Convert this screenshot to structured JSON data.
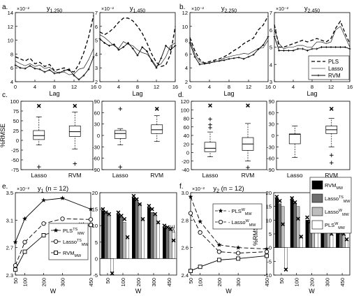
{
  "panel_letters": [
    "a.",
    "b.",
    "c.",
    "d.",
    "e.",
    "f."
  ],
  "legend_ab": [
    {
      "label": "PLS",
      "style": "dashed"
    },
    {
      "label": "Lasso",
      "style": "thin"
    },
    {
      "label": "RVM",
      "style": "star"
    }
  ],
  "legend_e": [
    {
      "label": "PLS",
      "sub": "MW",
      "sup": "TS",
      "marker": "star"
    },
    {
      "label": "Lasso",
      "sub": "MW",
      "sup": "TS",
      "marker": "circle"
    },
    {
      "label": "RVM",
      "sub": "MW",
      "sup": "",
      "marker": "square"
    }
  ],
  "legend_f": [
    {
      "label": "- PLS",
      "sub": "MW",
      "sup": "W",
      "marker": "star"
    },
    {
      "label": "- Lasso",
      "sub": "MW",
      "sup": "W",
      "marker": "circle"
    }
  ],
  "legend_bar": [
    {
      "label": "RVM",
      "sub": "MW",
      "sup": "",
      "color": "#000000"
    },
    {
      "label": "Lasso",
      "sub": "MW",
      "sup": "TS",
      "color": "#6e6e6e"
    },
    {
      "label": "Lasso",
      "sub": "MW",
      "sup": "W",
      "color": "#bdbdbd"
    },
    {
      "label": "PLS",
      "sub": "MW",
      "sup": "W",
      "color": "#ffffff"
    }
  ],
  "colors": {
    "rvm": "#000000",
    "lasso_ts": "#6e6e6e",
    "lasso_w": "#bdbdbd",
    "pls_w": "#ffffff"
  },
  "chart_data": [
    {
      "id": "a1",
      "type": "line",
      "title": "y1,250",
      "multiplier": "×10⁻²",
      "xlabel": "Lag",
      "ylabel": "RMSE",
      "xlim": [
        0,
        16
      ],
      "ylim": [
        4,
        14
      ],
      "xticks": [
        0,
        4,
        8,
        12,
        16
      ],
      "yticks": [
        4,
        6,
        8,
        10,
        12,
        14
      ],
      "x": [
        0,
        1,
        2,
        3,
        4,
        5,
        6,
        7,
        8,
        9,
        10,
        11,
        12,
        13,
        14,
        15,
        16
      ],
      "series": [
        {
          "name": "PLS",
          "values": [
            7.6,
            7.3,
            7.0,
            7.4,
            6.6,
            6.8,
            6.2,
            6.5,
            5.6,
            5.8,
            6.0,
            5.6,
            5.4,
            6.5,
            8.2,
            10.5,
            13.6
          ]
        },
        {
          "name": "Lasso",
          "values": [
            7.0,
            6.6,
            6.3,
            6.6,
            6.2,
            6.4,
            5.9,
            6.1,
            5.5,
            5.3,
            5.4,
            5.0,
            5.1,
            5.8,
            6.0,
            7.2,
            8.8
          ]
        },
        {
          "name": "RVM",
          "values": [
            6.4,
            6.0,
            5.9,
            6.3,
            5.9,
            5.8,
            5.4,
            5.7,
            5.2,
            5.3,
            5.6,
            5.8,
            4.9,
            4.3,
            4.9,
            5.8,
            7.6
          ]
        }
      ]
    },
    {
      "id": "a2",
      "type": "line",
      "title": "y1,450",
      "multiplier": "×10⁻²",
      "xlabel": "Lag",
      "ylabel": "",
      "xlim": [
        0,
        16
      ],
      "ylim": [
        2,
        7
      ],
      "xticks": [
        0,
        4,
        8,
        12,
        16
      ],
      "yticks": [
        2,
        3,
        4,
        5,
        6,
        7
      ],
      "x": [
        0,
        1,
        2,
        3,
        4,
        5,
        6,
        7,
        8,
        9,
        10,
        11,
        12,
        13,
        14,
        15,
        16
      ],
      "series": [
        {
          "name": "PLS",
          "values": [
            5.6,
            5.4,
            5.6,
            5.9,
            6.3,
            6.6,
            6.6,
            6.4,
            6.0,
            5.5,
            4.8,
            4.0,
            3.4,
            3.1,
            3.2,
            4.0,
            6.0
          ]
        },
        {
          "name": "Lasso",
          "values": [
            5.4,
            5.2,
            4.9,
            4.6,
            4.4,
            4.9,
            4.7,
            4.6,
            4.3,
            4.1,
            4.0,
            3.6,
            3.1,
            3.3,
            3.8,
            4.6,
            4.8
          ]
        },
        {
          "name": "RVM",
          "values": [
            5.1,
            4.8,
            4.6,
            4.7,
            4.3,
            4.5,
            4.8,
            4.4,
            3.9,
            4.5,
            4.2,
            3.5,
            3.0,
            3.7,
            4.6,
            4.3,
            4.6
          ]
        }
      ]
    },
    {
      "id": "b1",
      "type": "line",
      "title": "y2,250",
      "multiplier": "×10⁻²",
      "xlabel": "Lag",
      "ylabel": "",
      "xlim": [
        0,
        16
      ],
      "ylim": [
        2,
        12
      ],
      "xticks": [
        0,
        4,
        8,
        12,
        16
      ],
      "yticks": [
        2,
        4,
        6,
        8,
        10,
        12
      ],
      "x": [
        0,
        1,
        2,
        3,
        4,
        5,
        6,
        7,
        8,
        9,
        10,
        11,
        12,
        13,
        14,
        15,
        16
      ],
      "series": [
        {
          "name": "PLS",
          "values": [
            8.4,
            6.5,
            5.2,
            4.7,
            4.9,
            5.1,
            5.3,
            5.6,
            6.0,
            6.5,
            6.9,
            7.5,
            7.9,
            8.3,
            9.5,
            10.2,
            11.5
          ]
        },
        {
          "name": "Lasso",
          "values": [
            8.0,
            6.0,
            4.9,
            4.7,
            4.7,
            4.9,
            5.0,
            5.4,
            5.6,
            5.8,
            5.9,
            6.1,
            6.0,
            6.4,
            6.8,
            6.9,
            8.0
          ]
        },
        {
          "name": "RVM",
          "values": [
            7.6,
            5.6,
            4.5,
            4.6,
            4.7,
            4.9,
            5.0,
            5.1,
            5.3,
            5.4,
            5.5,
            5.3,
            5.6,
            5.9,
            6.7,
            7.3,
            8.5
          ]
        }
      ]
    },
    {
      "id": "b2",
      "type": "line",
      "title": "y2,450",
      "multiplier": "×10⁻²",
      "xlabel": "Lag",
      "ylabel": "",
      "xlim": [
        0,
        16
      ],
      "ylim": [
        3,
        7
      ],
      "xticks": [
        0,
        4,
        8,
        12,
        16
      ],
      "yticks": [
        3,
        4,
        5,
        6,
        7
      ],
      "x": [
        0,
        1,
        2,
        3,
        4,
        5,
        6,
        7,
        8,
        9,
        10,
        11,
        12,
        13,
        14,
        15,
        16
      ],
      "series": [
        {
          "name": "PLS",
          "values": [
            6.3,
            5.0,
            5.0,
            5.1,
            5.2,
            5.3,
            5.4,
            5.3,
            5.4,
            5.5,
            5.4,
            5.3,
            5.5,
            6.1,
            6.5,
            5.8,
            5.2
          ]
        },
        {
          "name": "Lasso",
          "values": [
            6.0,
            5.2,
            4.9,
            5.0,
            5.0,
            5.1,
            5.1,
            5.0,
            5.0,
            5.3,
            5.3,
            5.2,
            5.3,
            6.0,
            6.2,
            5.6,
            5.0
          ]
        },
        {
          "name": "RVM",
          "values": [
            5.6,
            4.8,
            4.8,
            4.8,
            4.8,
            4.9,
            4.9,
            4.8,
            4.9,
            4.9,
            5.0,
            5.0,
            5.0,
            5.0,
            5.0,
            5.0,
            4.9
          ]
        }
      ]
    },
    {
      "id": "c1",
      "type": "box",
      "ylabel": "%RMSE",
      "ylim": [
        -75,
        100
      ],
      "yticks": [
        -75,
        -50,
        -25,
        0,
        25,
        50,
        75,
        100
      ],
      "categories": [
        "Lasso",
        "RVM"
      ],
      "boxes": [
        {
          "whisker_low": -12,
          "q1": 2,
          "median": 12,
          "q3": 25,
          "whisker_high": 60,
          "outliers_plus": [
            -68
          ],
          "outliers_x": [
            88
          ]
        },
        {
          "whisker_low": -22,
          "q1": 10,
          "median": 22,
          "q3": 37,
          "whisker_high": 72,
          "outliers_plus": [
            -60
          ],
          "outliers_x": [
            88
          ]
        }
      ]
    },
    {
      "id": "c2",
      "type": "box",
      "ylabel": "",
      "ylim": [
        -90,
        90
      ],
      "yticks": [
        -90,
        -60,
        -30,
        0,
        30,
        60,
        90
      ],
      "categories": [
        "Lasso",
        "RVM"
      ],
      "boxes": [
        {
          "whisker_low": -25,
          "q1": -8,
          "median": 5,
          "q3": 13,
          "whisker_high": 18,
          "outliers_plus": [
            -83,
            70
          ],
          "outliers_x": []
        },
        {
          "whisker_low": -16,
          "q1": 5,
          "median": 15,
          "q3": 28,
          "whisker_high": 52,
          "outliers_plus": [],
          "outliers_x": [
            70
          ]
        }
      ]
    },
    {
      "id": "d1",
      "type": "box",
      "ylabel": "",
      "ylim": [
        -40,
        120
      ],
      "yticks": [
        -40,
        -20,
        0,
        20,
        40,
        60,
        80,
        100,
        120
      ],
      "categories": [
        "Lasso",
        "RVM"
      ],
      "boxes": [
        {
          "whisker_low": -10,
          "q1": 2,
          "median": 10,
          "q3": 24,
          "whisker_high": 48,
          "outliers_plus": [
            58,
            65,
            78
          ],
          "outliers_x": [
            110
          ]
        },
        {
          "whisker_low": -20,
          "q1": 5,
          "median": 20,
          "q3": 35,
          "whisker_high": 68,
          "outliers_plus": [
            -35
          ],
          "outliers_x": [
            110
          ]
        }
      ]
    },
    {
      "id": "d2",
      "type": "box",
      "ylabel": "",
      "ylim": [
        -90,
        90
      ],
      "yticks": [
        -90,
        -60,
        -30,
        0,
        30,
        60,
        90
      ],
      "categories": [
        "Lasso",
        "RVM"
      ],
      "boxes": [
        {
          "whisker_low": -58,
          "q1": -22,
          "median": 3,
          "q3": 4,
          "whisker_high": 25,
          "outliers_plus": [],
          "outliers_x": []
        },
        {
          "whisker_low": -30,
          "q1": 5,
          "median": 15,
          "q3": 25,
          "whisker_high": 45,
          "outliers_plus": [
            -52,
            -72
          ],
          "outliers_x": [
            70
          ]
        }
      ]
    },
    {
      "id": "e1",
      "type": "line",
      "title": "y1 (n = 12)",
      "multiplier": "×10⁻²",
      "xlabel": "W",
      "ylabel": "RMSE",
      "xlim": [
        50,
        450
      ],
      "ylim": [
        2.3,
        3.5
      ],
      "xticks": [
        50,
        100,
        200,
        300,
        450
      ],
      "yticks": [
        2.3,
        2.7,
        3.1,
        3.5
      ],
      "x": [
        50,
        100,
        200,
        300,
        450
      ],
      "series": [
        {
          "name": "PLS_MW^TS",
          "marker": "star",
          "dash": "none",
          "values": [
            2.78,
            3.12,
            3.39,
            3.42,
            3.26
          ]
        },
        {
          "name": "Lasso_MW^TS",
          "marker": "circle",
          "dash": "6,3",
          "values": [
            2.44,
            2.78,
            3.05,
            3.12,
            3.11
          ]
        },
        {
          "name": "RVM_MW",
          "marker": "square",
          "dash": "none",
          "values": [
            2.38,
            2.64,
            2.88,
            2.98,
            3.03
          ]
        }
      ]
    },
    {
      "id": "e2",
      "type": "bar",
      "xlabel": "W",
      "ylabel": "%RMSE",
      "ylim": [
        -5,
        20
      ],
      "yticks": [
        -5,
        0,
        5,
        10,
        15,
        20
      ],
      "categories": [
        "50",
        "100",
        "200",
        "300",
        "450"
      ],
      "series": [
        {
          "name": "RVM_MW",
          "values": [
            14.5,
            13.5,
            18.5,
            15.5,
            9.5
          ]
        },
        {
          "name": "Lasso_MW^TS",
          "values": [
            13.5,
            12.5,
            17.5,
            14.0,
            9.0
          ]
        },
        {
          "name": "Lasso_MW^W",
          "values": [
            13.0,
            11.0,
            16.5,
            13.0,
            8.5
          ]
        },
        {
          "name": "PLS_MW^W",
          "values": [
            -4.0,
            6.0,
            11.5,
            10.5,
            8.0
          ]
        }
      ],
      "markers_x": [
        [
          15.0,
          14.0,
          13.5,
          -4.5
        ],
        [
          14.0,
          13.0,
          12.0,
          6.5
        ],
        [
          19.0,
          18.0,
          16.5,
          12.0
        ],
        [
          16.0,
          15.0,
          13.5,
          11.0
        ],
        [
          10.0,
          9.5,
          9.0,
          5.5
        ]
      ]
    },
    {
      "id": "f1",
      "type": "line",
      "title": "y2 (n = 12)",
      "multiplier": "×10⁻²",
      "xlabel": "W",
      "ylabel": "RMSE",
      "xlim": [
        50,
        450
      ],
      "ylim": [
        2.4,
        3.0
      ],
      "xticks": [
        50,
        100,
        200,
        300,
        450
      ],
      "yticks": [
        2.4,
        2.6,
        2.8,
        3.0
      ],
      "x": [
        50,
        100,
        200,
        300,
        450
      ],
      "series": [
        {
          "name": "PLS_MW^W",
          "marker": "star",
          "dash": "6,3",
          "values": [
            2.97,
            2.79,
            2.62,
            2.6,
            2.59
          ]
        },
        {
          "name": "Lasso_MW^W",
          "marker": "circle",
          "dash": "6,3",
          "values": [
            2.85,
            2.71,
            2.57,
            2.56,
            2.57
          ]
        },
        {
          "name": "RVM_MW",
          "marker": "square",
          "dash": "none",
          "values": [
            2.43,
            2.46,
            2.51,
            2.52,
            2.54
          ]
        }
      ]
    },
    {
      "id": "f2",
      "type": "bar",
      "xlabel": "W",
      "ylabel": "%RMSE",
      "ylim": [
        -10,
        20
      ],
      "yticks": [
        -10,
        -5,
        0,
        5,
        10,
        15,
        20
      ],
      "categories": [
        "50",
        "100",
        "200",
        "300",
        "450"
      ],
      "series": [
        {
          "name": "RVM_MW",
          "values": [
            18.0,
            17.5,
            10.0,
            7.0,
            6.0
          ]
        },
        {
          "name": "Lasso_MW^TS",
          "values": [
            16.0,
            16.0,
            9.0,
            6.0,
            5.0
          ]
        },
        {
          "name": "Lasso_MW^W",
          "values": [
            15.0,
            15.0,
            8.5,
            5.5,
            4.5
          ]
        },
        {
          "name": "PLS_MW^W",
          "values": [
            -7.5,
            3.5,
            6.0,
            4.5,
            2.5
          ]
        }
      ],
      "markers_x": [
        [
          18.5,
          17.0,
          8.5,
          -8.0
        ],
        [
          18.0,
          16.5,
          10.5,
          4.0
        ],
        [
          11.0,
          9.5,
          9.0,
          6.5
        ],
        [
          7.5,
          7.0,
          6.0,
          5.0
        ],
        [
          6.5,
          5.5,
          5.0,
          3.0
        ]
      ]
    }
  ]
}
